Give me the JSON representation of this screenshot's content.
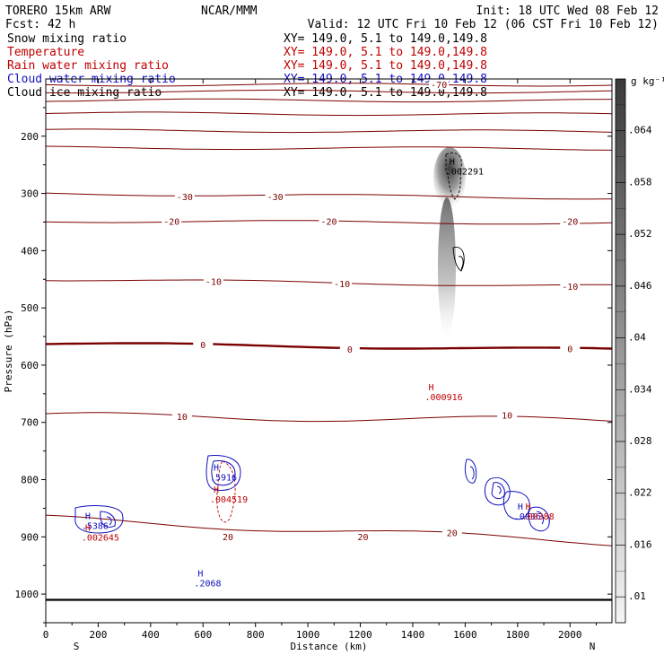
{
  "header": {
    "model": "TORERO  15km ARW",
    "center": "NCAR/MMM",
    "init": "Init: 18 UTC Wed 08 Feb 12",
    "fcst": "Fcst:   42 h",
    "valid": "Valid: 12 UTC Fri 10 Feb 12 (06 CST Fri 10 Feb 12)"
  },
  "fields": [
    {
      "name": "Snow mixing ratio",
      "xy": "XY= 149.0,  5.1 to 149.0,149.8",
      "color": "#000000"
    },
    {
      "name": "Temperature",
      "xy": "XY= 149.0,  5.1 to 149.0,149.8",
      "color": "#c00000"
    },
    {
      "name": "Rain water mixing ratio",
      "xy": "XY= 149.0,  5.1 to 149.0,149.8",
      "color": "#c00000"
    },
    {
      "name": "Cloud water mixing ratio",
      "xy": "XY= 149.0,  5.1 to 149.0,149.8",
      "color": "#1010c0"
    },
    {
      "name": "Cloud ice mixing ratio",
      "xy": "XY= 149.0,  5.1 to 149.0,149.8",
      "color": "#000000"
    }
  ],
  "chart_data": {
    "type": "cross-section",
    "xlabel": "Distance (km)",
    "ylabel": "Pressure (hPa)",
    "xlim": [
      0,
      2160
    ],
    "ylim": [
      1050,
      100
    ],
    "x_ticks": [
      0,
      200,
      400,
      600,
      800,
      1000,
      1200,
      1400,
      1600,
      1800,
      2000
    ],
    "y_ticks": [
      200,
      300,
      400,
      500,
      600,
      700,
      800,
      900,
      1000
    ],
    "left_end": "S",
    "right_end": "N",
    "surface_pressure": 1010,
    "colorbar": {
      "unit": "g kg⁻¹",
      "ticks": [
        ".01",
        ".016",
        ".022",
        ".028",
        ".034",
        ".04",
        ".046",
        ".052",
        ".058",
        ".064"
      ],
      "min": 0.007,
      "max": 0.07
    },
    "temperature_isotherms": [
      {
        "label": "-70",
        "p": [
          110,
          110
        ]
      },
      {
        "label": "",
        "p": [
          122,
          122
        ]
      },
      {
        "label": "",
        "p": [
          137,
          138
        ]
      },
      {
        "label": "",
        "p": [
          160,
          162
        ]
      },
      {
        "label": "",
        "p": [
          190,
          192
        ]
      },
      {
        "label": "",
        "p": [
          220,
          222
        ]
      },
      {
        "label": "-30",
        "p": [
          300,
          308
        ]
      },
      {
        "label": "-20",
        "p": [
          348,
          352
        ]
      },
      {
        "label": "-10",
        "p": [
          450,
          462
        ]
      },
      {
        "label": "0",
        "p": [
          562,
          573
        ]
      },
      {
        "label": "10",
        "p": [
          688,
          697
        ]
      },
      {
        "label": "20",
        "p": [
          868,
          910
        ]
      }
    ],
    "temperature_labels": [
      {
        "text": "-70",
        "x": 1500,
        "p": 110
      },
      {
        "text": "-30",
        "x": 530,
        "p": 306
      },
      {
        "text": "-30",
        "x": 875,
        "p": 306
      },
      {
        "text": "-20",
        "x": 480,
        "p": 349
      },
      {
        "text": "-20",
        "x": 1080,
        "p": 349
      },
      {
        "text": "-20",
        "x": 2000,
        "p": 349
      },
      {
        "text": "-10",
        "x": 640,
        "p": 454
      },
      {
        "text": "-10",
        "x": 1130,
        "p": 458
      },
      {
        "text": "-10",
        "x": 2000,
        "p": 463
      },
      {
        "text": "0",
        "x": 600,
        "p": 565
      },
      {
        "text": "0",
        "x": 1160,
        "p": 573
      },
      {
        "text": "0",
        "x": 2000,
        "p": 572
      },
      {
        "text": "10",
        "x": 520,
        "p": 690
      },
      {
        "text": "10",
        "x": 1760,
        "p": 688
      },
      {
        "text": "20",
        "x": 695,
        "p": 900
      },
      {
        "text": "20",
        "x": 1210,
        "p": 900
      },
      {
        "text": "20",
        "x": 1550,
        "p": 893
      }
    ],
    "maxima": [
      {
        "label": "H",
        "value": ".002291",
        "x": 1540,
        "p": 265,
        "color": "#000000"
      },
      {
        "label": "H",
        "value": ".000916",
        "x": 1460,
        "p": 660,
        "color": "#c00000"
      },
      {
        "label": "H",
        "value": ".2068",
        "x": 580,
        "p": 985,
        "color": "#1010c0"
      },
      {
        "label": "H",
        "value": ".5916",
        "x": 640,
        "p": 800,
        "color": "#1010c0"
      },
      {
        "label": "H",
        "value": ".004519",
        "x": 640,
        "p": 838,
        "color": "#c00000"
      },
      {
        "label": "H",
        "value": ".5386",
        "x": 150,
        "p": 885,
        "color": "#1010c0"
      },
      {
        "label": "H",
        "value": ".002645",
        "x": 150,
        "p": 905,
        "color": "#c00000"
      },
      {
        "label": "H",
        "value": ".0036",
        "x": 1800,
        "p": 868,
        "color": "#1010c0"
      },
      {
        "label": "H",
        "value": ".00388",
        "x": 1830,
        "p": 868,
        "color": "#c00000"
      }
    ]
  }
}
